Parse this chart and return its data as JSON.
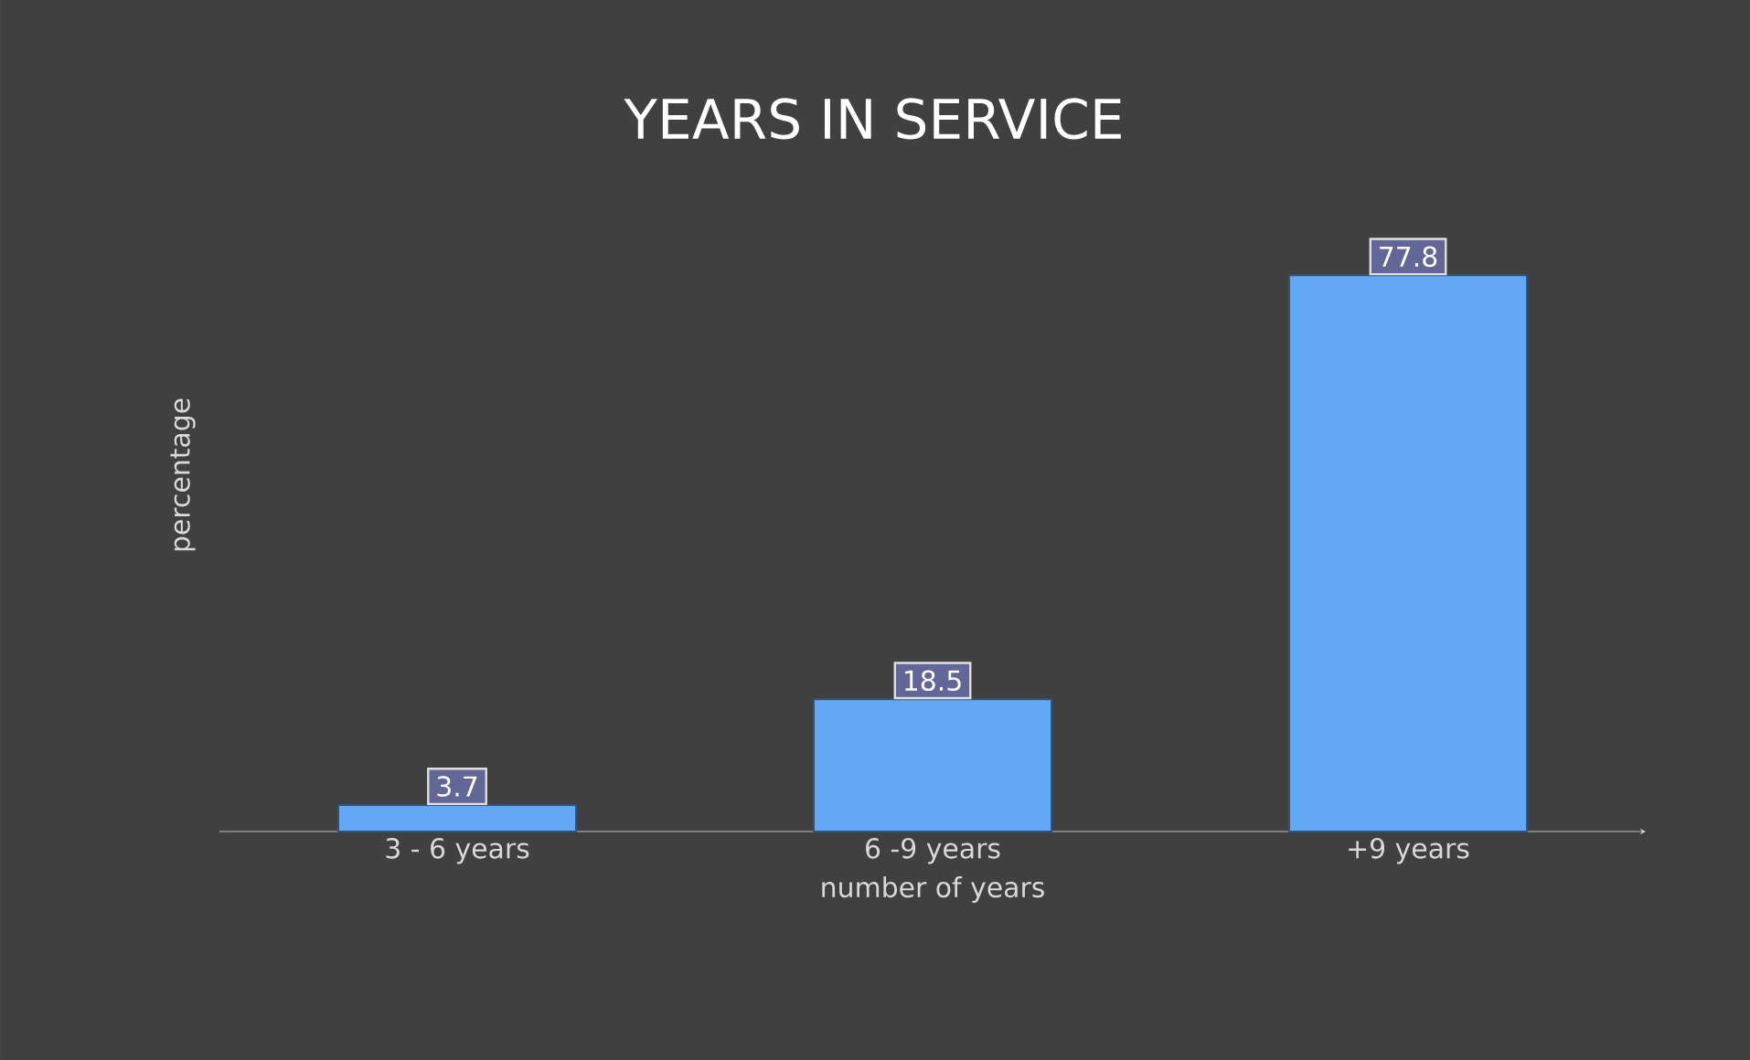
{
  "chart_data": {
    "type": "bar",
    "title": "YEARS IN  SERVICE",
    "xlabel": "number of years",
    "ylabel": "percentage",
    "categories": [
      "3 - 6 years",
      "6 -9 years",
      "+9 years"
    ],
    "values": [
      3.7,
      18.5,
      77.8
    ],
    "color": "#62a8f5",
    "data_labels": true
  }
}
